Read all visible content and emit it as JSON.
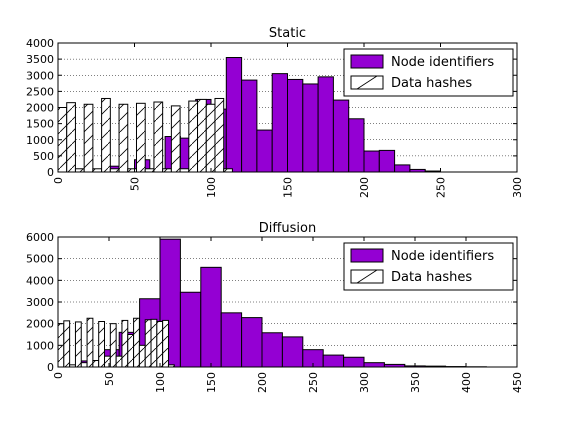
{
  "chart_data": [
    {
      "type": "bar",
      "title": "Static",
      "xlabel": "",
      "ylabel": "",
      "xlim": [
        0,
        300
      ],
      "ylim": [
        0,
        4000
      ],
      "xticks": [
        0,
        50,
        100,
        150,
        200,
        250,
        300
      ],
      "yticks": [
        0,
        500,
        1000,
        1500,
        2000,
        2500,
        3000,
        3500,
        4000
      ],
      "grid": "horizontal-dotted",
      "legend": "top-right",
      "series": [
        {
          "name": "Node identifiers",
          "color": "#9400d3",
          "bin_edges": [
            0,
            10,
            20,
            30,
            40,
            50,
            60,
            70,
            80,
            90,
            100,
            110,
            120,
            130,
            140,
            150,
            160,
            170,
            180,
            190,
            200,
            210,
            220,
            230,
            240,
            250,
            260
          ],
          "values": [
            0,
            0,
            0,
            180,
            60,
            380,
            70,
            1100,
            1050,
            2250,
            1950,
            3550,
            2850,
            1300,
            3050,
            2870,
            2730,
            2950,
            2230,
            1650,
            650,
            670,
            220,
            80,
            30,
            0
          ]
        },
        {
          "name": "Data hashes",
          "color": "#ffffff",
          "hatch": "diagonal",
          "bin_edges": [
            0,
            5.7,
            11.4,
            17.1,
            22.8,
            28.5,
            34.2,
            39.9,
            45.6,
            51.3,
            57,
            62.7,
            68.4,
            74.1,
            79.8,
            85.5,
            91.2,
            96.9,
            102.6,
            108.3,
            114
          ],
          "values": [
            2000,
            2150,
            100,
            2100,
            100,
            2280,
            100,
            2100,
            100,
            2130,
            100,
            2170,
            100,
            2050,
            100,
            2200,
            2250,
            2100,
            2280,
            100
          ]
        }
      ]
    },
    {
      "type": "bar",
      "title": "Diffusion",
      "xlabel": "",
      "ylabel": "",
      "xlim": [
        0,
        450
      ],
      "ylim": [
        0,
        6000
      ],
      "xticks": [
        0,
        50,
        100,
        150,
        200,
        250,
        300,
        350,
        400,
        450
      ],
      "yticks": [
        0,
        1000,
        2000,
        3000,
        4000,
        5000,
        6000
      ],
      "grid": "horizontal-dotted",
      "legend": "top-right",
      "series": [
        {
          "name": "Node identifiers",
          "color": "#9400d3",
          "bin_edges": [
            0,
            20,
            40,
            60,
            80,
            100,
            120,
            140,
            160,
            180,
            200,
            220,
            240,
            260,
            280,
            300,
            320,
            340,
            360,
            380,
            400,
            420,
            440,
            460
          ],
          "values": [
            0,
            280,
            800,
            1600,
            3150,
            5900,
            3450,
            4600,
            2500,
            2280,
            1580,
            1390,
            800,
            550,
            450,
            200,
            120,
            50,
            40,
            20,
            10,
            0,
            0
          ]
        },
        {
          "name": "Data hashes",
          "color": "#ffffff",
          "hatch": "diagonal",
          "bin_edges": [
            0,
            5.7,
            11.4,
            17.1,
            22.8,
            28.5,
            34.2,
            39.9,
            45.6,
            51.3,
            57,
            62.7,
            68.4,
            74.1,
            79.8,
            85.5,
            91.2,
            96.9,
            102.6,
            108.3,
            114
          ],
          "values": [
            2000,
            2130,
            100,
            2080,
            200,
            2250,
            300,
            2100,
            500,
            2000,
            500,
            2150,
            1500,
            2250,
            1000,
            2180,
            2200,
            2100,
            2150,
            100
          ]
        }
      ]
    }
  ]
}
